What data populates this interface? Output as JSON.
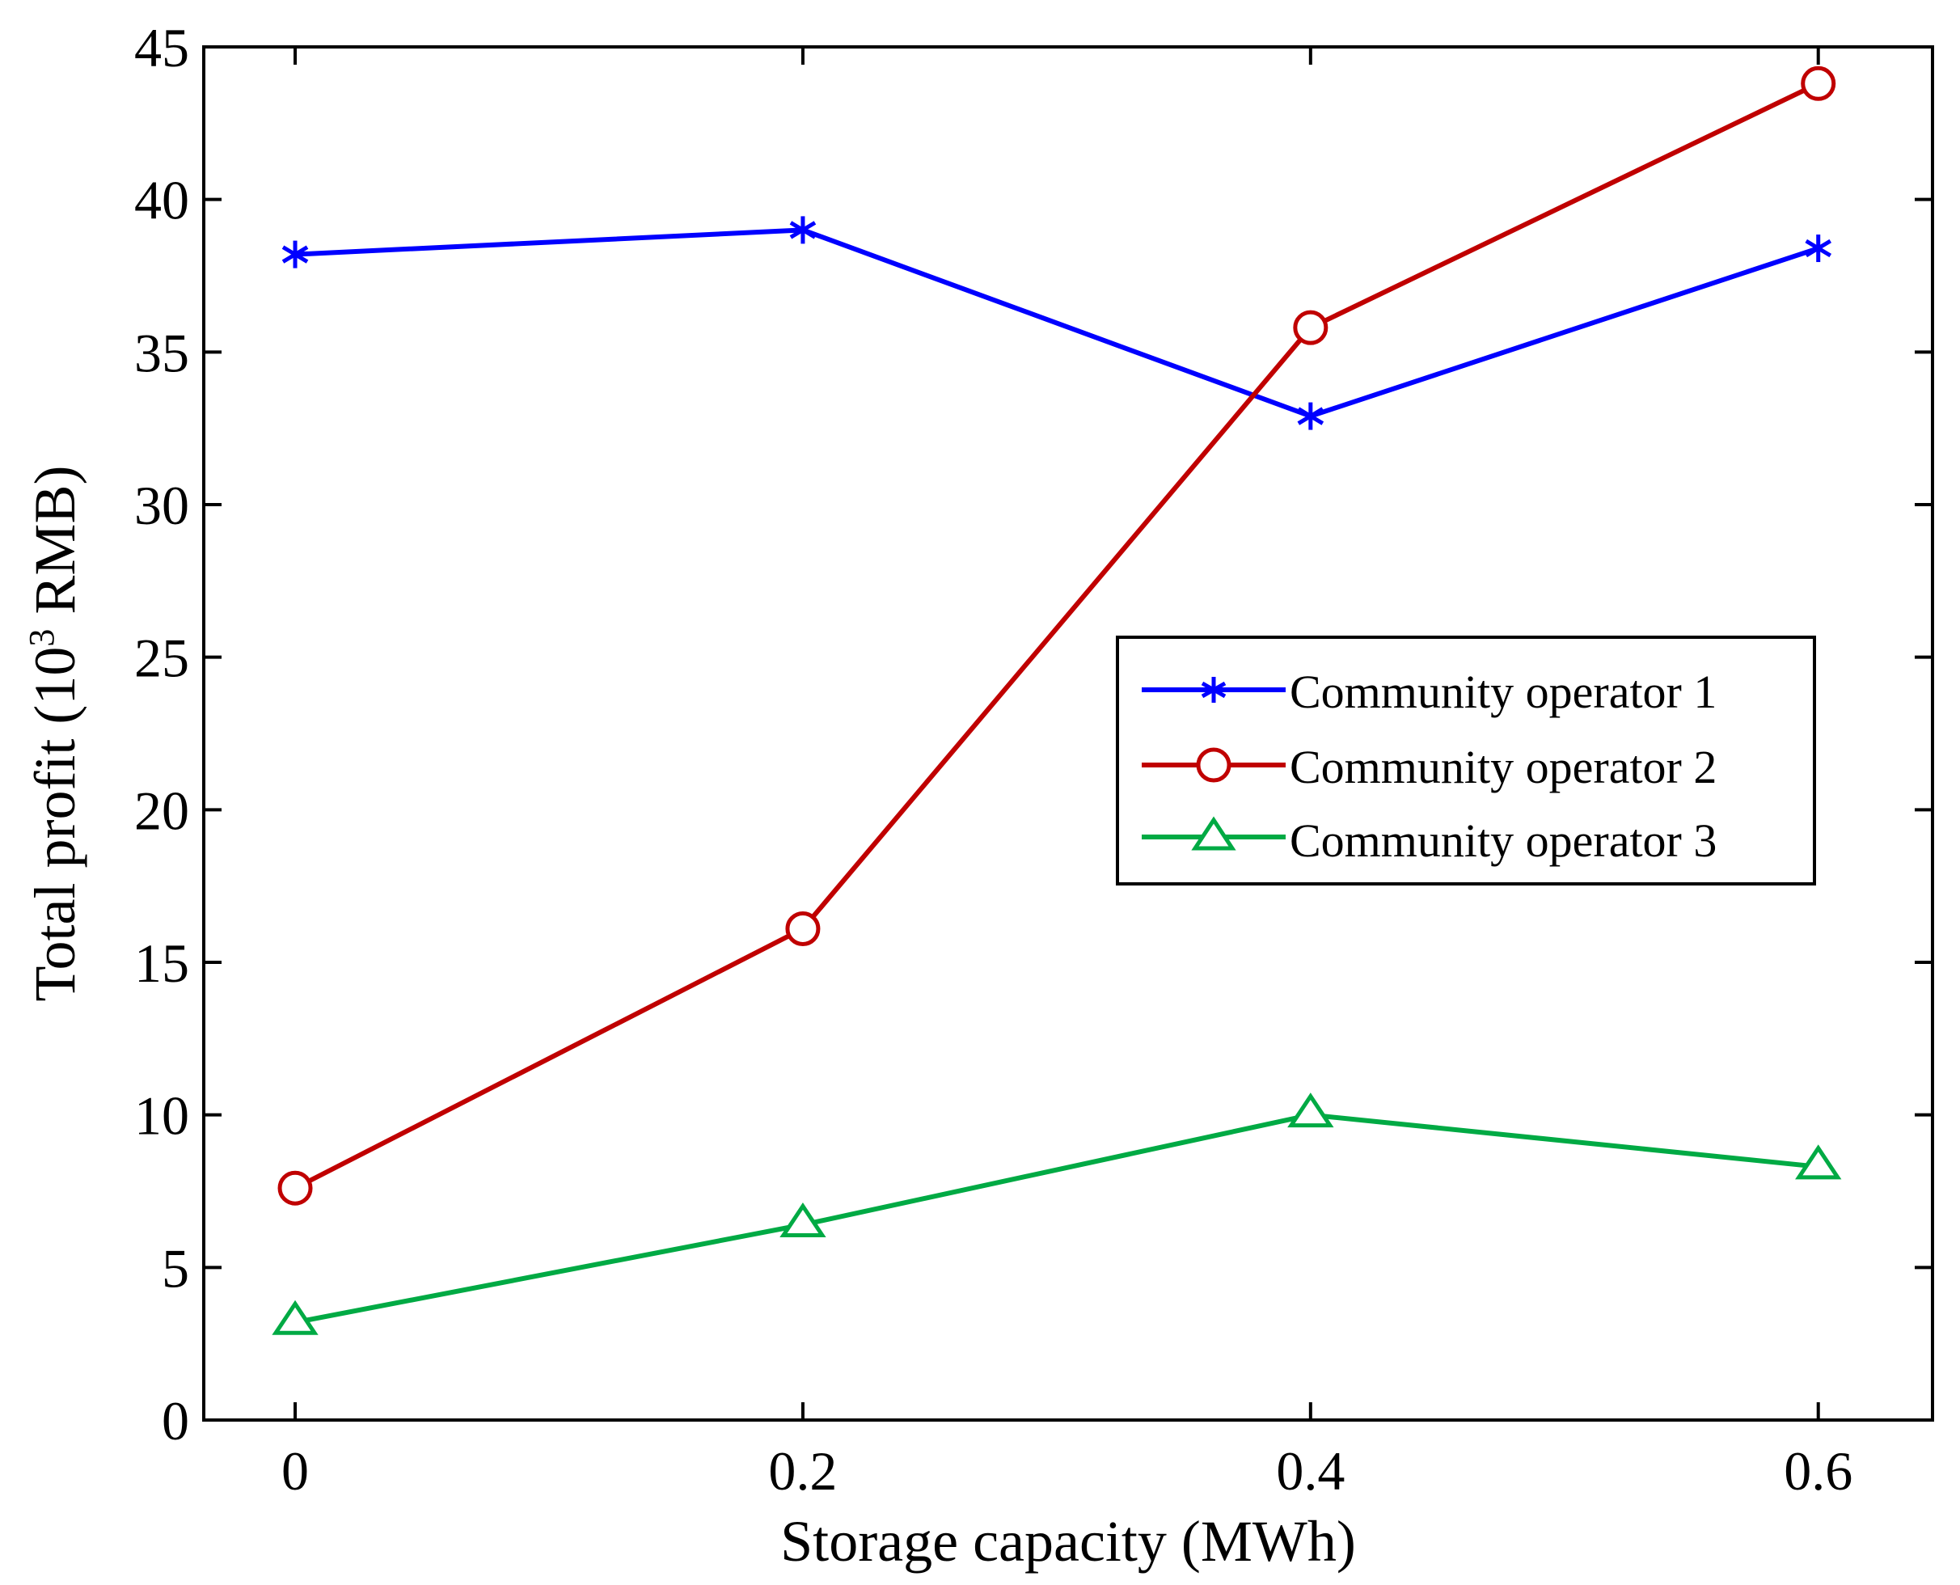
{
  "chart_data": {
    "type": "line",
    "title": "",
    "xlabel": "Storage capacity (MWh)",
    "ylabel": {
      "prefix": "Total profit (10",
      "superscript": "3",
      "suffix": " RMB)"
    },
    "x": [
      0,
      0.2,
      0.4,
      0.6
    ],
    "xlim": [
      -0.036,
      0.645
    ],
    "ylim": [
      0,
      45
    ],
    "xticks": [
      0,
      0.2,
      0.4,
      0.6
    ],
    "xtick_labels": [
      "0",
      "0.2",
      "0.4",
      "0.6"
    ],
    "yticks": [
      0,
      5,
      10,
      15,
      20,
      25,
      30,
      35,
      40,
      45
    ],
    "ytick_labels": [
      "0",
      "5",
      "10",
      "15",
      "20",
      "25",
      "30",
      "35",
      "40",
      "45"
    ],
    "grid": false,
    "legend_position": "right",
    "series": [
      {
        "name": "Community operator 1",
        "values": [
          38.2,
          39.0,
          32.9,
          38.4
        ],
        "color": "#0000ff",
        "marker": "asterisk"
      },
      {
        "name": "Community operator 2",
        "values": [
          7.6,
          16.1,
          35.8,
          43.8
        ],
        "color": "#c00000",
        "marker": "circle"
      },
      {
        "name": "Community operator 3",
        "values": [
          3.2,
          6.4,
          10.0,
          8.3
        ],
        "color": "#00aa44",
        "marker": "triangle"
      }
    ]
  }
}
